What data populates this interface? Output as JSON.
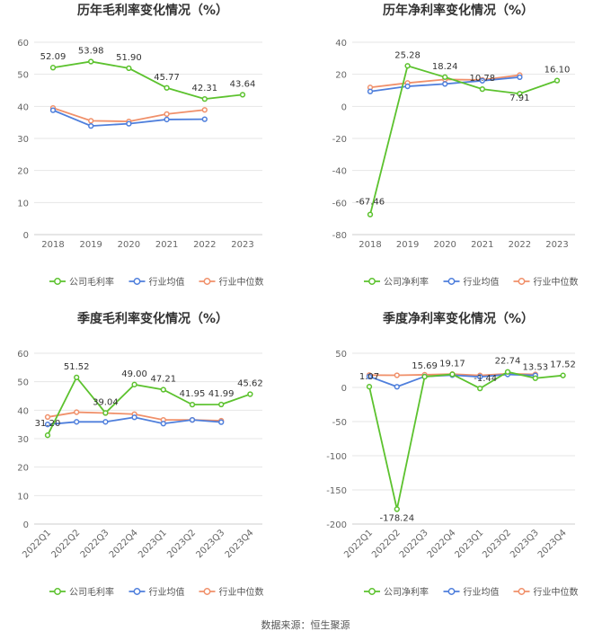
{
  "colors": {
    "company": "#5cc22e",
    "industry_avg": "#4f7fdc",
    "industry_median": "#f0906a",
    "axis_text": "#666666",
    "grid": "#e6e6e6",
    "title": "#333333"
  },
  "source": "数据来源：恒生聚源",
  "chart_data": [
    {
      "type": "line",
      "title": "历年毛利率变化情况（%）",
      "categories": [
        "2018",
        "2019",
        "2020",
        "2021",
        "2022",
        "2023"
      ],
      "ylim": [
        0,
        60
      ],
      "yticks": [
        0,
        10,
        20,
        30,
        40,
        50,
        60
      ],
      "legend_position": "bottom",
      "series": [
        {
          "name": "公司毛利率",
          "values": [
            52.09,
            53.98,
            51.9,
            45.77,
            42.31,
            43.64
          ],
          "labels": [
            "52.09",
            "53.98",
            "51.90",
            "45.77",
            "42.31",
            "43.64"
          ]
        },
        {
          "name": "行业均值",
          "values": [
            38.8,
            33.9,
            34.6,
            35.9,
            36.0,
            null
          ]
        },
        {
          "name": "行业中位数",
          "values": [
            39.5,
            35.5,
            35.3,
            37.6,
            38.9,
            null
          ]
        }
      ]
    },
    {
      "type": "line",
      "title": "历年净利率变化情况（%）",
      "categories": [
        "2018",
        "2019",
        "2020",
        "2021",
        "2022",
        "2023"
      ],
      "ylim": [
        -80,
        40
      ],
      "yticks": [
        -80,
        -60,
        -40,
        -20,
        0,
        20,
        40
      ],
      "legend_position": "bottom",
      "series": [
        {
          "name": "公司净利率",
          "values": [
            -67.46,
            25.28,
            18.24,
            10.78,
            7.91,
            16.1
          ],
          "labels": [
            "-67.46",
            "25.28",
            "18.24",
            "10.78",
            "7.91",
            "16.10"
          ]
        },
        {
          "name": "行业均值",
          "values": [
            9.3,
            12.5,
            14.0,
            16.0,
            18.2,
            null
          ]
        },
        {
          "name": "行业中位数",
          "values": [
            11.8,
            14.6,
            16.8,
            16.5,
            19.5,
            null
          ]
        }
      ]
    },
    {
      "type": "line",
      "title": "季度毛利率变化情况（%）",
      "categories": [
        "2022Q1",
        "2022Q2",
        "2022Q3",
        "2022Q4",
        "2023Q1",
        "2023Q2",
        "2023Q3",
        "2023Q4"
      ],
      "ylim": [
        0,
        60
      ],
      "yticks": [
        0,
        10,
        20,
        30,
        40,
        50,
        60
      ],
      "legend_position": "bottom",
      "series": [
        {
          "name": "公司毛利率",
          "values": [
            31.2,
            51.52,
            39.04,
            49.0,
            47.21,
            41.95,
            41.99,
            45.62
          ],
          "labels": [
            "31.20",
            "51.52",
            "39.04",
            "49.00",
            "47.21",
            "41.95",
            "41.99",
            "45.62"
          ]
        },
        {
          "name": "行业均值",
          "values": [
            35.0,
            35.9,
            35.9,
            37.5,
            35.3,
            36.6,
            35.8,
            null
          ]
        },
        {
          "name": "行业中位数",
          "values": [
            37.6,
            39.3,
            39.0,
            38.6,
            36.6,
            36.6,
            36.3,
            null
          ]
        }
      ]
    },
    {
      "type": "line",
      "title": "季度净利率变化情况（%）",
      "categories": [
        "2022Q1",
        "2022Q2",
        "2022Q3",
        "2022Q4",
        "2023Q1",
        "2023Q2",
        "2023Q3",
        "2023Q4"
      ],
      "ylim": [
        -200,
        50
      ],
      "yticks": [
        -200,
        -150,
        -100,
        -50,
        0,
        50
      ],
      "legend_position": "bottom",
      "series": [
        {
          "name": "公司净利率",
          "values": [
            1.07,
            -178.24,
            15.69,
            19.17,
            -1.44,
            22.74,
            13.53,
            17.52
          ],
          "labels": [
            "1.07",
            "-178.24",
            "15.69",
            "19.17",
            "-1.44",
            "22.74",
            "13.53",
            "17.52"
          ]
        },
        {
          "name": "行业均值",
          "values": [
            16.0,
            1.0,
            16.0,
            18.0,
            15.5,
            19.0,
            17.5,
            null
          ]
        },
        {
          "name": "行业中位数",
          "values": [
            18.0,
            17.8,
            18.5,
            19.5,
            17.5,
            20.0,
            19.0,
            null
          ]
        }
      ]
    }
  ]
}
